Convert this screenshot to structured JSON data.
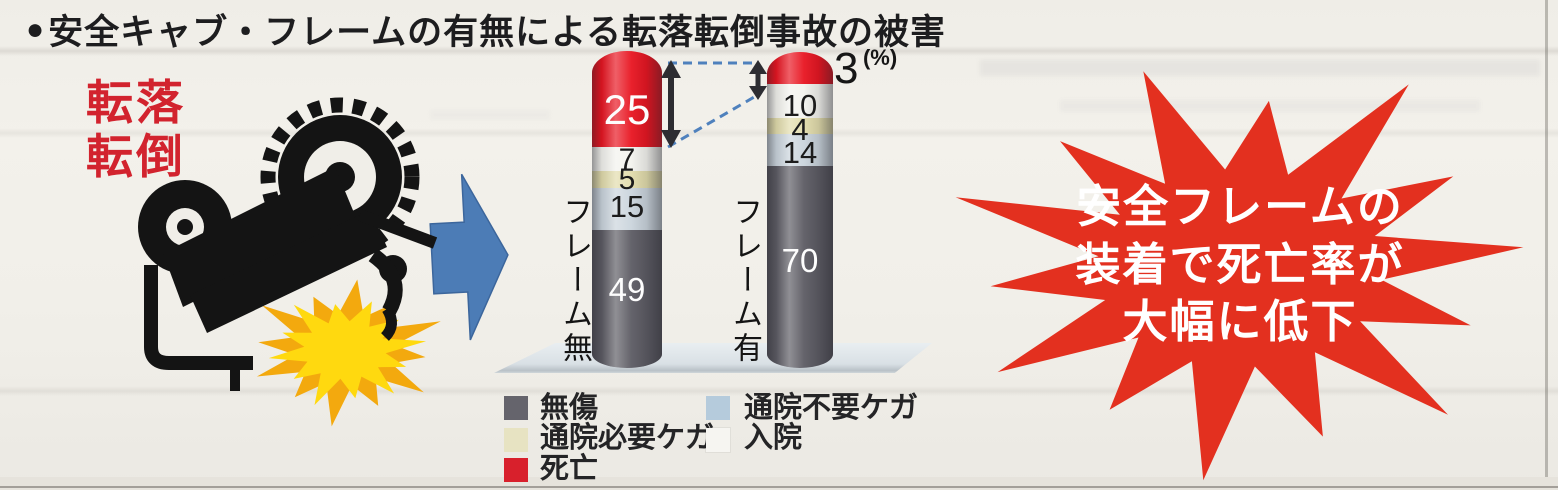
{
  "title": {
    "bullet": "●",
    "text": "安全キャブ・フレームの有無による転落転倒事故の被害"
  },
  "accident_label": {
    "line1": "転落",
    "line2": "転倒"
  },
  "chart_data": {
    "type": "bar",
    "subtype": "stacked-cylinder-3d",
    "title": "安全キャブ・フレームの有無による転落転倒事故の被害",
    "unit": "%",
    "unit_label": "(%)",
    "categories": [
      "フレーム無",
      "フレーム有"
    ],
    "series": [
      {
        "name": "死亡",
        "color": "#e8131f",
        "values": [
          25,
          3
        ]
      },
      {
        "name": "入院",
        "color": "#f3f3ee",
        "values": [
          7,
          10
        ]
      },
      {
        "name": "通院必要ケガ",
        "color": "#e2dcab",
        "values": [
          5,
          4
        ]
      },
      {
        "name": "通院不要ケガ",
        "color": "#cad4dc",
        "values": [
          15,
          14
        ]
      },
      {
        "name": "無傷",
        "color": "#5b5a62",
        "values": [
          49,
          70
        ]
      }
    ],
    "legend_position": "bottom",
    "axis": "none",
    "annotations": [
      "死亡率25%と3%の差を示す両矢印と青い破線"
    ]
  },
  "legend": {
    "col1": [
      {
        "label": "無傷",
        "color": "#65646c"
      },
      {
        "label": "通院必要ケガ",
        "color": "#e7e3c2"
      },
      {
        "label": "死亡",
        "color": "#d8202c"
      }
    ],
    "col2": [
      {
        "label": "通院不要ケガ",
        "color": "#b5cbdc"
      },
      {
        "label": "入院",
        "color": "#f6f5f1"
      }
    ]
  },
  "burst": {
    "color": "#e3301f",
    "lines": [
      "安全フレームの",
      "装着で死亡率が",
      "大幅に低下"
    ]
  },
  "icons": {
    "tractor": "転落転倒したトラクターのピクトグラム",
    "impact": "衝突の黄色い閃光",
    "arrow": "右向き青矢印"
  }
}
